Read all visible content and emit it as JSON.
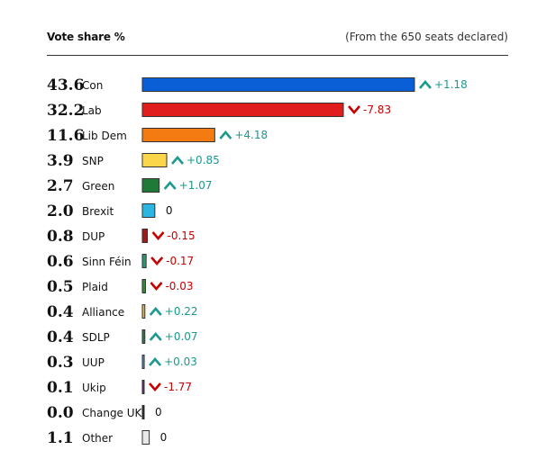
{
  "header": {
    "title": "Vote share %",
    "subtitle": "(From the 650 seats declared)"
  },
  "colors": {
    "up": "#1a9a8f",
    "down": "#c70000",
    "neutral": "#121212",
    "border": "#333333"
  },
  "chart_data": {
    "type": "bar",
    "orientation": "horizontal",
    "title": "Vote share %",
    "subtitle": "(From the 650 seats declared)",
    "xlim": [
      0,
      43.6
    ],
    "rows": [
      {
        "label": "Con",
        "value_text": "43.6",
        "value": 43.6,
        "change_text": "+1.18",
        "direction": "up",
        "color": "#0a5fd6"
      },
      {
        "label": "Lab",
        "value_text": "32.2",
        "value": 32.2,
        "change_text": "-7.83",
        "direction": "down",
        "color": "#e01e1e"
      },
      {
        "label": "Lib Dem",
        "value_text": "11.6",
        "value": 11.6,
        "change_text": "+4.18",
        "direction": "up",
        "color": "#f47a12"
      },
      {
        "label": "SNP",
        "value_text": "3.9",
        "value": 3.9,
        "change_text": "+0.85",
        "direction": "up",
        "color": "#fcd64a"
      },
      {
        "label": "Green",
        "value_text": "2.7",
        "value": 2.7,
        "change_text": "+1.07",
        "direction": "up",
        "color": "#1e7a36"
      },
      {
        "label": "Brexit",
        "value_text": "2.0",
        "value": 2.0,
        "change_text": "0",
        "direction": "none",
        "color": "#2cb5e0"
      },
      {
        "label": "DUP",
        "value_text": "0.8",
        "value": 0.8,
        "change_text": "-0.15",
        "direction": "down",
        "color": "#9c1b1b"
      },
      {
        "label": "Sinn Féin",
        "value_text": "0.6",
        "value": 0.6,
        "change_text": "-0.17",
        "direction": "down",
        "color": "#2a9a6a"
      },
      {
        "label": "Plaid",
        "value_text": "0.5",
        "value": 0.5,
        "change_text": "-0.03",
        "direction": "down",
        "color": "#3a8a3a"
      },
      {
        "label": "Alliance",
        "value_text": "0.4",
        "value": 0.4,
        "change_text": "+0.22",
        "direction": "up",
        "color": "#e8b43a"
      },
      {
        "label": "SDLP",
        "value_text": "0.4",
        "value": 0.4,
        "change_text": "+0.07",
        "direction": "up",
        "color": "#2f7a4a"
      },
      {
        "label": "UUP",
        "value_text": "0.3",
        "value": 0.3,
        "change_text": "+0.03",
        "direction": "up",
        "color": "#5a8acc"
      },
      {
        "label": "Ukip",
        "value_text": "0.1",
        "value": 0.1,
        "change_text": "-1.77",
        "direction": "down",
        "color": "#6a2a7a"
      },
      {
        "label": "Change UK",
        "value_text": "0.0",
        "value": 0.0,
        "change_text": "0",
        "direction": "none",
        "color": "#222222"
      },
      {
        "label": "Other",
        "value_text": "1.1",
        "value": 1.1,
        "change_text": "0",
        "direction": "none",
        "color": "#e8e8e8"
      }
    ]
  }
}
